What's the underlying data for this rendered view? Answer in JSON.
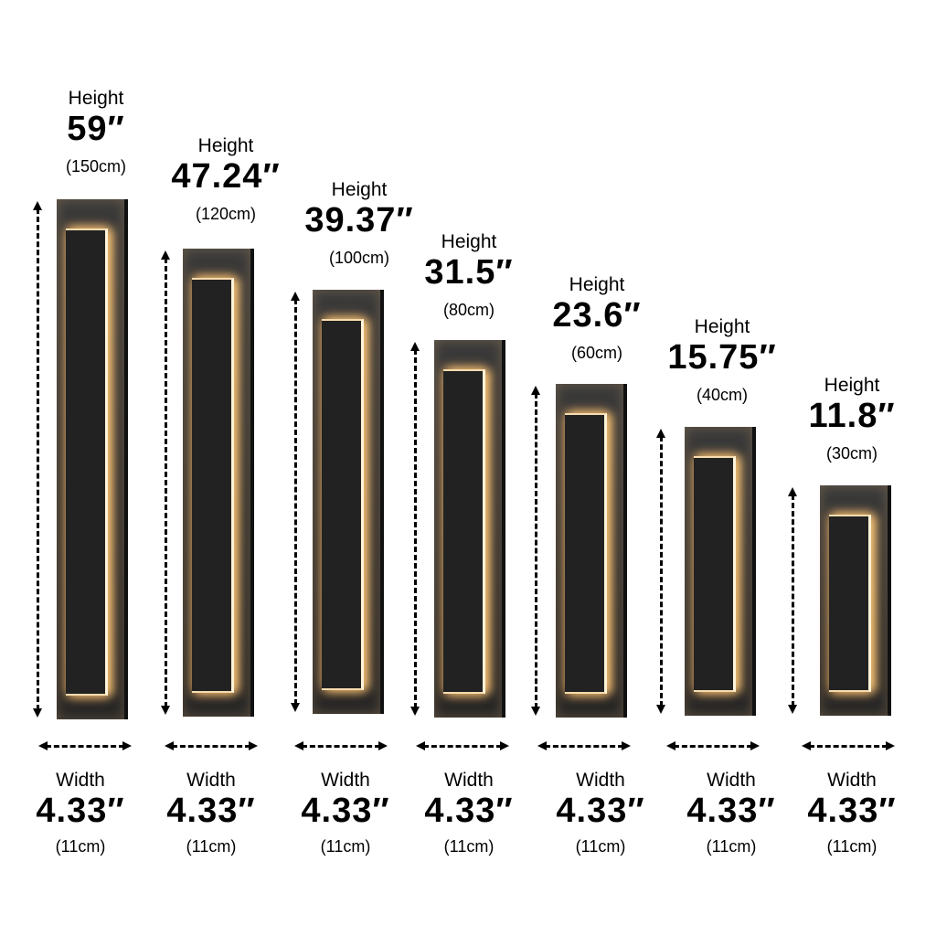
{
  "height_word": "Height",
  "width_word": "Width",
  "accent_glow": "#ffd9a0",
  "lamps": [
    {
      "height_in": "59″",
      "height_cm": "(150cm)",
      "width_in": "4.33″",
      "width_cm": "(11cm)"
    },
    {
      "height_in": "47.24″",
      "height_cm": "(120cm)",
      "width_in": "4.33″",
      "width_cm": "(11cm)"
    },
    {
      "height_in": "39.37″",
      "height_cm": "(100cm)",
      "width_in": "4.33″",
      "width_cm": "(11cm)"
    },
    {
      "height_in": "31.5″",
      "height_cm": "(80cm)",
      "width_in": "4.33″",
      "width_cm": "(11cm)"
    },
    {
      "height_in": "23.6″",
      "height_cm": "(60cm)",
      "width_in": "4.33″",
      "width_cm": "(11cm)"
    },
    {
      "height_in": "15.75″",
      "height_cm": "(40cm)",
      "width_in": "4.33″",
      "width_cm": "(11cm)"
    },
    {
      "height_in": "11.8″",
      "height_cm": "(30cm)",
      "width_in": "4.33″",
      "width_cm": "(11cm)"
    }
  ]
}
